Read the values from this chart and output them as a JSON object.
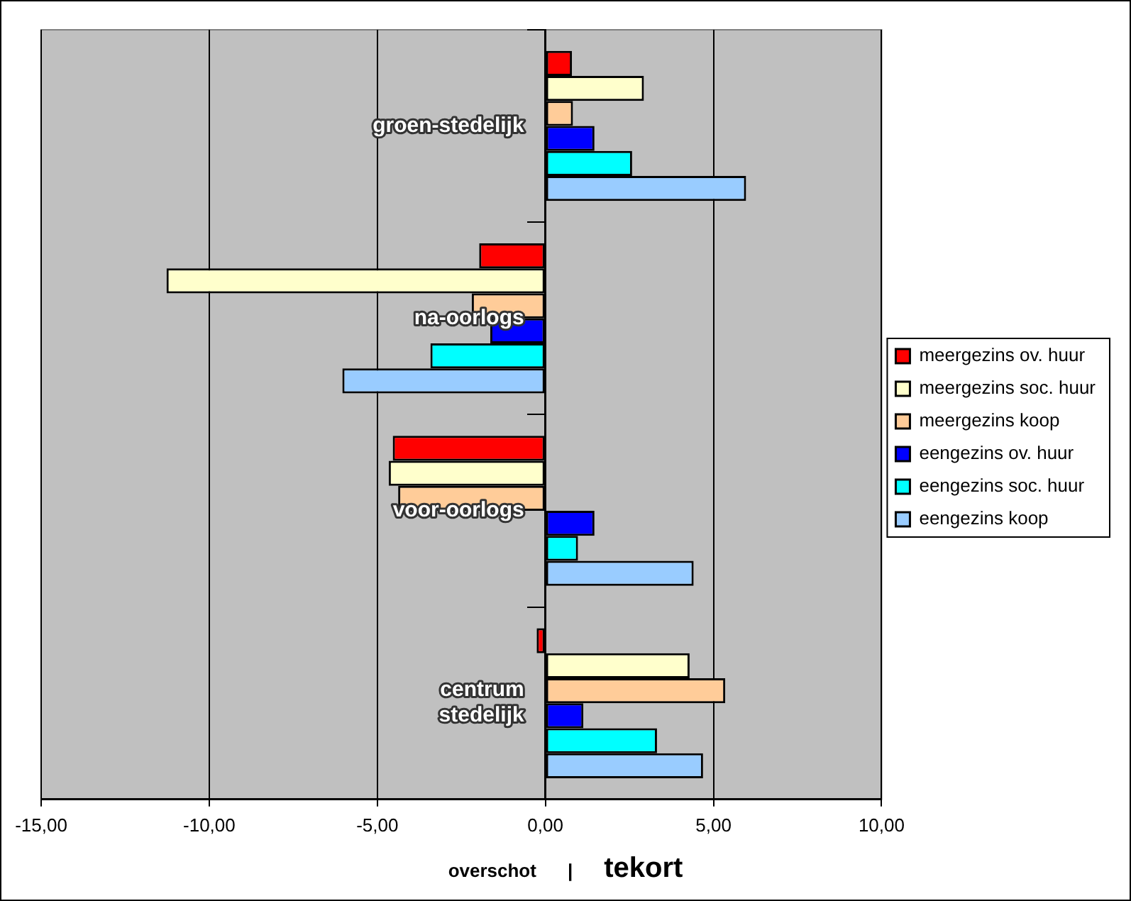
{
  "chart_data": {
    "type": "bar",
    "orientation": "horizontal",
    "xlabel": "overschot | tekort",
    "categories": [
      "groen-stedelijk",
      "na-oorlogs",
      "voor-oorlogs",
      "centrum stedelijk"
    ],
    "series": [
      {
        "name": "meergezins ov. huur",
        "color": "#ff0000",
        "values": [
          0.79,
          -1.97,
          -4.54,
          -0.26
        ]
      },
      {
        "name": "meergezins soc. huur",
        "color": "#ffffcc",
        "values": [
          2.93,
          -11.27,
          -4.66,
          4.29
        ]
      },
      {
        "name": "meergezins koop",
        "color": "#ffcc99",
        "values": [
          0.82,
          -2.19,
          -4.38,
          5.35
        ]
      },
      {
        "name": "eengezins ov. huur",
        "color": "#0000ff",
        "values": [
          1.46,
          -1.64,
          1.46,
          1.13
        ]
      },
      {
        "name": "eengezins soc. huur",
        "color": "#00ffff",
        "values": [
          2.58,
          -3.42,
          0.97,
          3.32
        ]
      },
      {
        "name": "eengezins koop",
        "color": "#99ccff",
        "values": [
          5.97,
          -6.04,
          4.41,
          4.69
        ]
      }
    ],
    "xlim": [
      -15,
      10
    ],
    "xticks": [
      {
        "value": -15,
        "label": "-15,00"
      },
      {
        "value": -10,
        "label": "-10,00"
      },
      {
        "value": -5,
        "label": "-5,00"
      },
      {
        "value": 0,
        "label": "0,00"
      },
      {
        "value": 5,
        "label": "5,00"
      },
      {
        "value": 10,
        "label": "10,00"
      }
    ],
    "grid": "x",
    "legend": "right"
  }
}
